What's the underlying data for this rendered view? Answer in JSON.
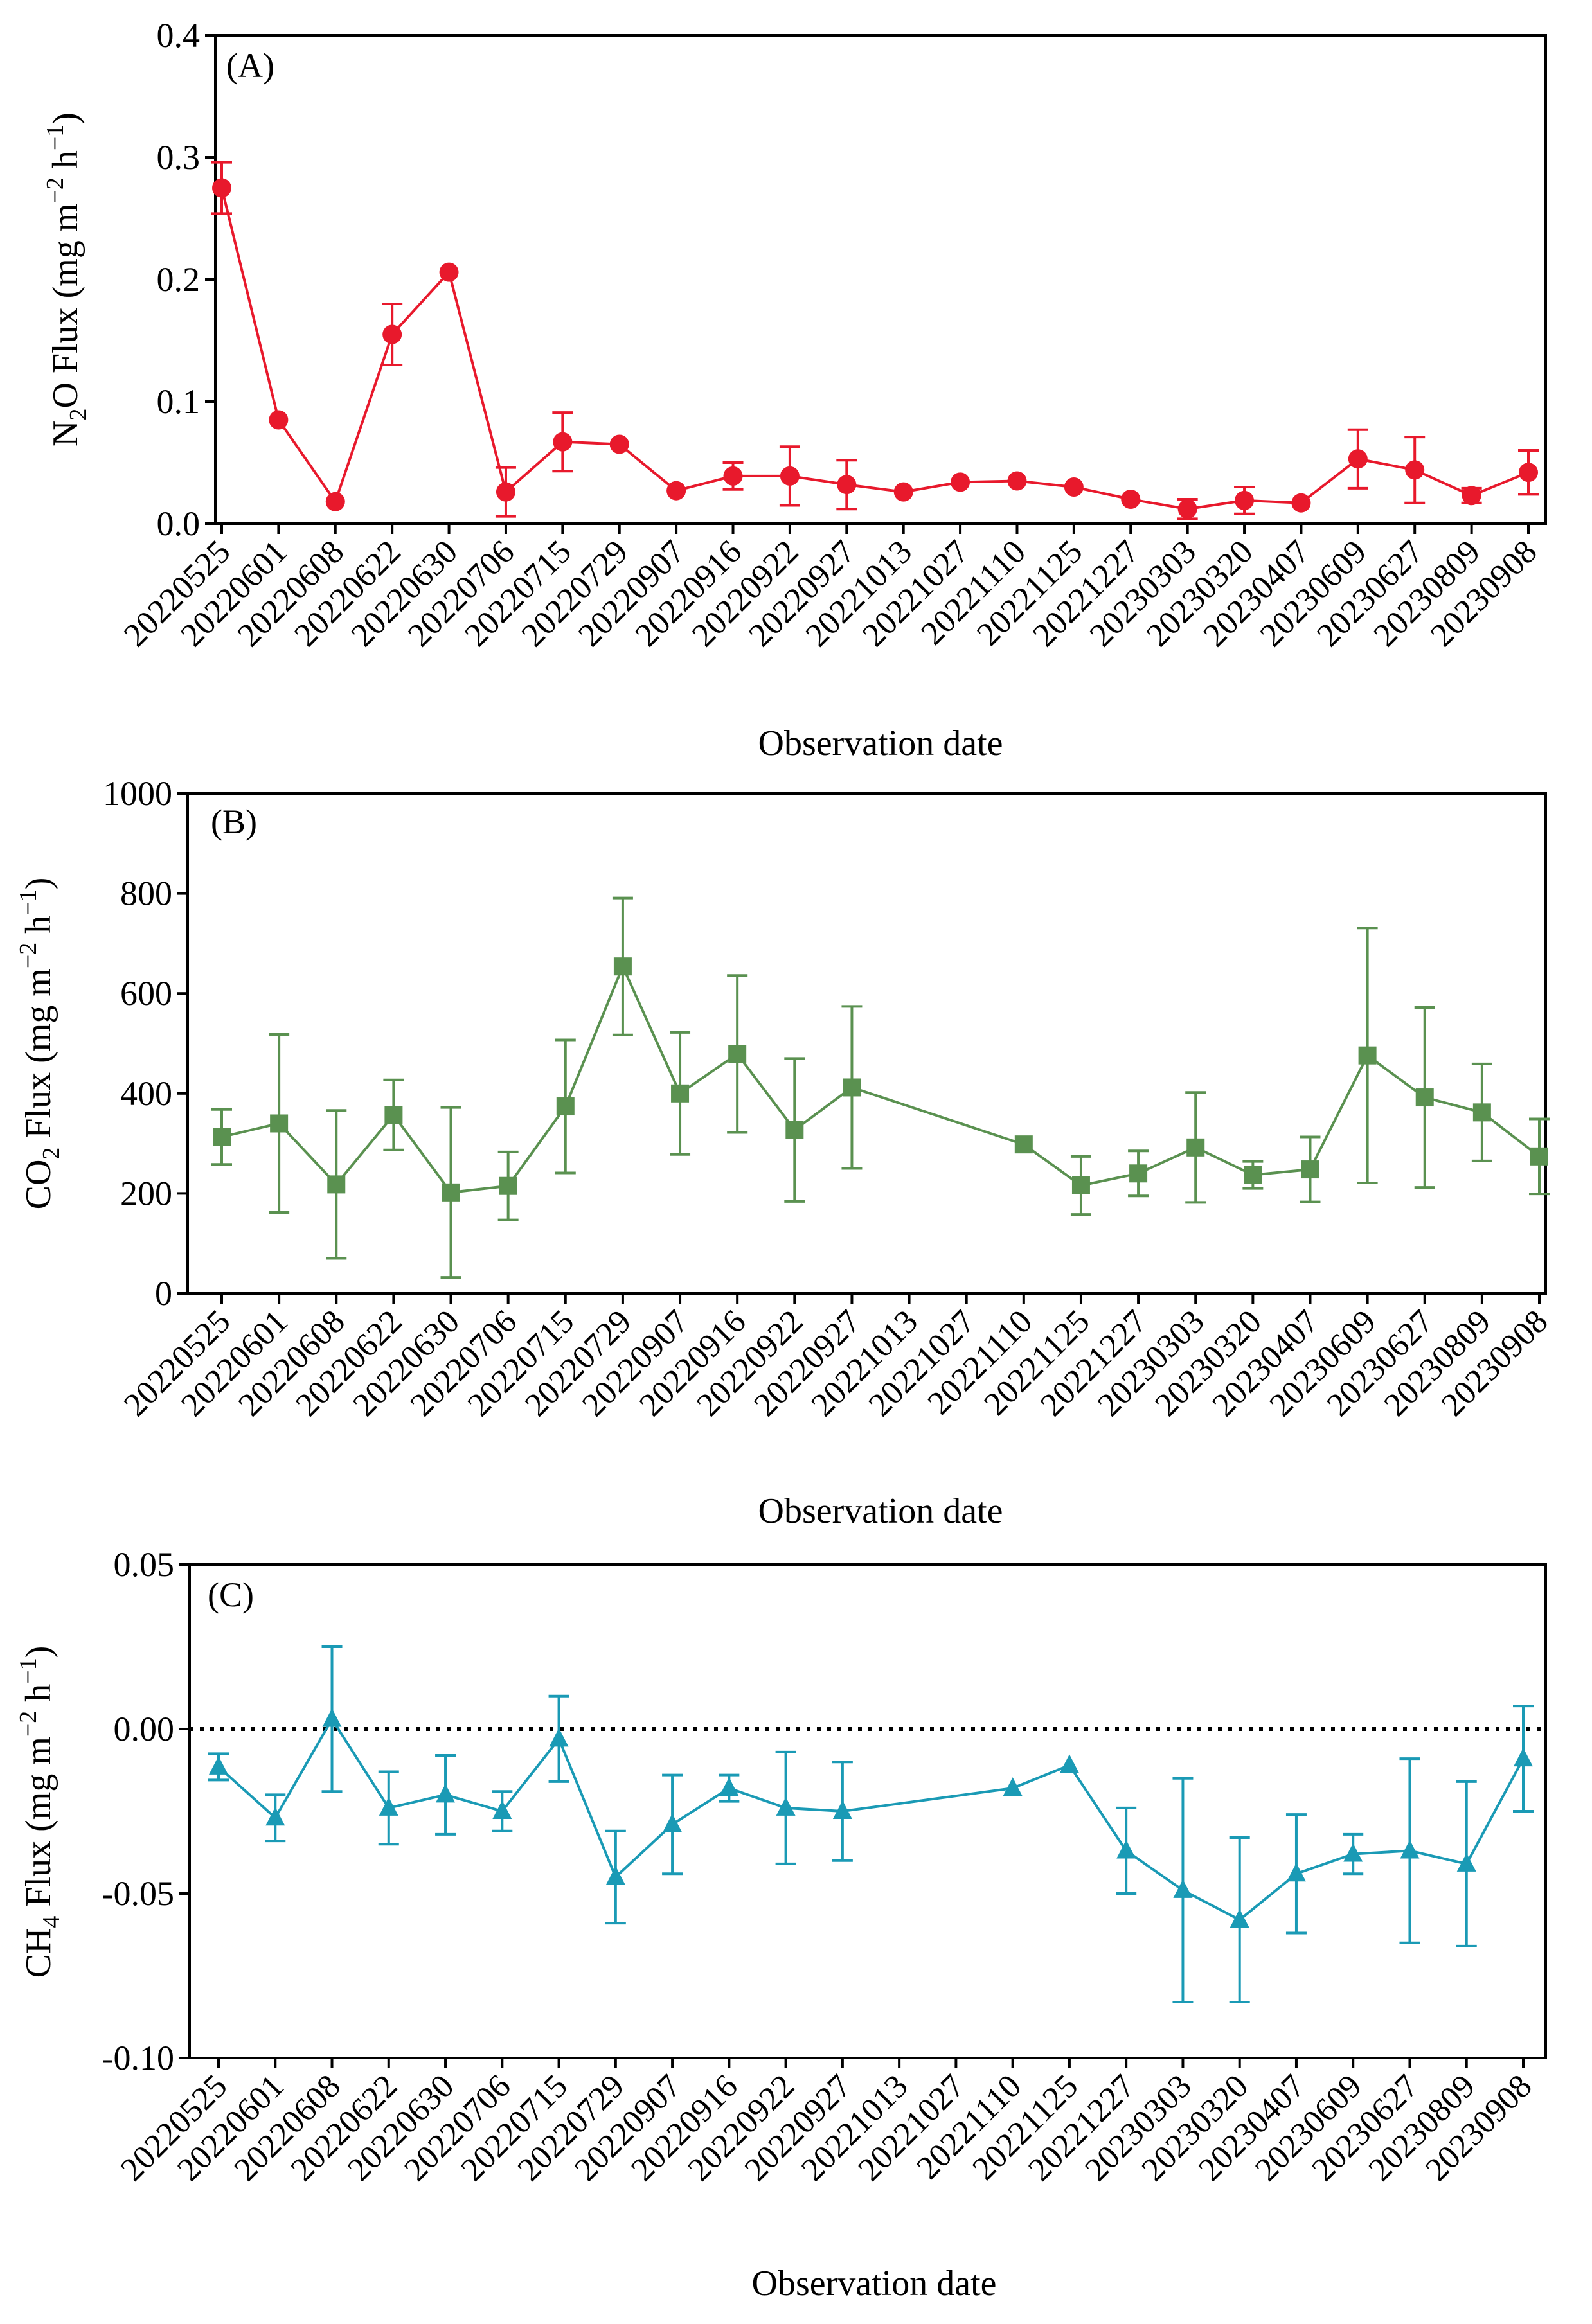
{
  "chart_data": [
    {
      "type": "line",
      "panel_label": "(A)",
      "categories": [
        "20220525",
        "20220601",
        "20220608",
        "20220622",
        "20220630",
        "20220706",
        "20220715",
        "20220729",
        "20220907",
        "20220916",
        "20220922",
        "20220927",
        "20221013",
        "20221027",
        "20221110",
        "20221125",
        "20221227",
        "20230303",
        "20230320",
        "20230407",
        "20230609",
        "20230627",
        "20230809",
        "20230908"
      ],
      "series": [
        {
          "marker": "circle",
          "color": "#e8192c",
          "values": [
            0.275,
            0.085,
            0.018,
            0.155,
            0.206,
            0.026,
            0.067,
            0.065,
            0.027,
            0.039,
            0.039,
            0.032,
            0.026,
            0.034,
            0.035,
            0.03,
            0.02,
            0.012,
            0.019,
            0.017,
            0.053,
            0.044,
            0.023,
            0.042
          ],
          "errors": [
            0.021,
            0.0,
            0.0,
            0.025,
            0.0,
            0.02,
            0.024,
            0.0,
            0.0,
            0.011,
            0.024,
            0.02,
            0.0,
            0.0,
            0.0,
            0.0,
            0.0,
            0.008,
            0.011,
            0.0,
            0.024,
            0.027,
            0.006,
            0.018
          ]
        }
      ],
      "xlabel": "Observation date",
      "ylabel": "N₂O Flux (mg m⁻² h⁻¹)",
      "ylabel_main": "N",
      "ylabel_sub": "2",
      "ylabel_rest": "O Flux (mg m",
      "ylabel_sup1": "−2",
      "ylabel_mid": " h",
      "ylabel_sup2": "−1",
      "ylabel_end": ")",
      "ylim": [
        0.0,
        0.4
      ],
      "yticks": [
        "0.0",
        "0.1",
        "0.2",
        "0.3",
        "0.4"
      ],
      "ytick_values": [
        0.0,
        0.1,
        0.2,
        0.3,
        0.4
      ]
    },
    {
      "type": "line",
      "panel_label": "(B)",
      "categories": [
        "20220525",
        "20220601",
        "20220608",
        "20220622",
        "20220630",
        "20220706",
        "20220715",
        "20220729",
        "20220907",
        "20220916",
        "20220922",
        "20220927",
        "20221013",
        "20221027",
        "20221110",
        "20221125",
        "20221227",
        "20230303",
        "20230320",
        "20230407",
        "20230609",
        "20230627",
        "20230809",
        "20230908"
      ],
      "series": [
        {
          "marker": "square",
          "color": "#5a9150",
          "values": [
            313,
            340,
            218,
            357,
            202,
            215,
            374,
            654,
            400,
            479,
            327,
            412,
            null,
            null,
            298,
            216,
            240,
            292,
            237,
            248,
            476,
            392,
            362,
            274
          ],
          "errors": [
            55,
            178,
            148,
            70,
            170,
            68,
            133,
            137,
            122,
            157,
            143,
            162,
            null,
            null,
            0,
            58,
            45,
            110,
            27,
            65,
            255,
            180,
            97,
            75
          ]
        }
      ],
      "xlabel": "Observation date",
      "ylabel_main": "CO",
      "ylabel_sub": "2",
      "ylabel_rest": " Flux (mg m",
      "ylabel_sup1": "−2",
      "ylabel_mid": " h",
      "ylabel_sup2": "−1",
      "ylabel_end": ")",
      "ylim": [
        0,
        1000
      ],
      "yticks": [
        "0",
        "200",
        "400",
        "600",
        "800",
        "1000"
      ],
      "ytick_values": [
        0,
        200,
        400,
        600,
        800,
        1000
      ]
    },
    {
      "type": "line",
      "panel_label": "(C)",
      "categories": [
        "20220525",
        "20220601",
        "20220608",
        "20220622",
        "20220630",
        "20220706",
        "20220715",
        "20220729",
        "20220907",
        "20220916",
        "20220922",
        "20220927",
        "20221013",
        "20221027",
        "20221110",
        "20221125",
        "20221227",
        "20230303",
        "20230320",
        "20230407",
        "20230609",
        "20230627",
        "20230809",
        "20230908"
      ],
      "series": [
        {
          "marker": "triangle",
          "color": "#1a9ab5",
          "values": [
            -0.0115,
            -0.027,
            0.003,
            -0.024,
            -0.02,
            -0.025,
            -0.003,
            -0.045,
            -0.029,
            -0.018,
            -0.024,
            -0.025,
            null,
            null,
            -0.018,
            -0.011,
            -0.037,
            -0.049,
            -0.058,
            -0.044,
            -0.038,
            -0.037,
            -0.041,
            -0.009
          ],
          "errors": [
            0.004,
            0.007,
            0.022,
            0.011,
            0.012,
            0.006,
            0.013,
            0.014,
            0.015,
            0.004,
            0.017,
            0.015,
            null,
            null,
            0.0,
            0.0,
            0.013,
            0.034,
            0.025,
            0.018,
            0.006,
            0.028,
            0.025,
            0.016
          ]
        }
      ],
      "reference_line": 0.0,
      "xlabel": "Observation date",
      "ylabel_main": "CH",
      "ylabel_sub": "4",
      "ylabel_rest": " Flux (mg m",
      "ylabel_sup1": "−2",
      "ylabel_mid": " h",
      "ylabel_sup2": "−1",
      "ylabel_end": ")",
      "ylim": [
        -0.1,
        0.05
      ],
      "yticks": [
        "-0.10",
        "-0.05",
        "0.00",
        "0.05"
      ],
      "ytick_values": [
        -0.1,
        -0.05,
        0.0,
        0.05
      ]
    }
  ]
}
